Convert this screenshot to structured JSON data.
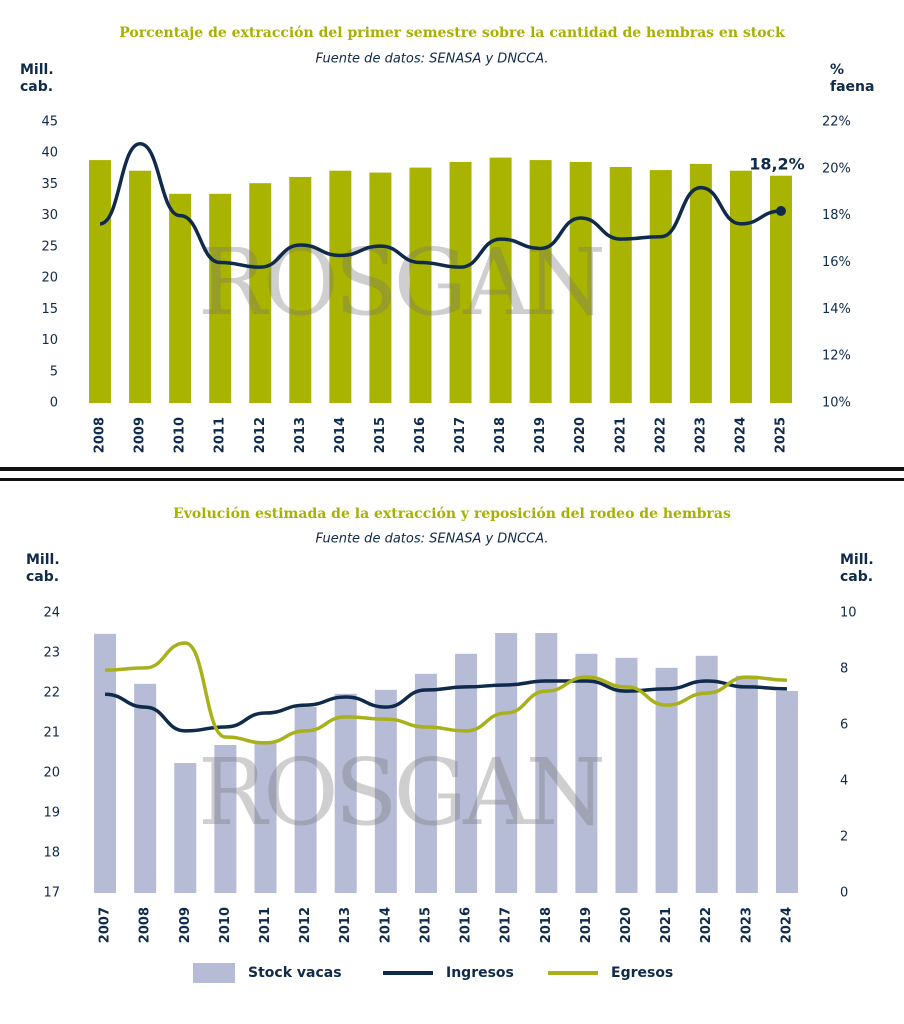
{
  "chart_data": [
    {
      "type": "combo",
      "title": "Porcentaje de extracción del primer semestre sobre la cantidad de hembras en stock",
      "subtitle": "Fuente de datos: SENASA y DNCCA.",
      "y_label": "Mill. cab.",
      "y2_label": "% faena",
      "watermark": "ROSGAN",
      "annotation": "18,2%",
      "categories": [
        "2008",
        "2009",
        "2010",
        "2011",
        "2012",
        "2013",
        "2014",
        "2015",
        "2016",
        "2017",
        "2018",
        "2019",
        "2020",
        "2021",
        "2022",
        "2023",
        "2024",
        "2025"
      ],
      "series": [
        {
          "type": "bar",
          "color": "#a8b400",
          "values": [
            38.9,
            37.2,
            33.5,
            33.5,
            35.2,
            36.2,
            37.2,
            36.9,
            37.7,
            38.6,
            39.3,
            38.9,
            38.6,
            37.8,
            37.3,
            38.3,
            37.2,
            36.4
          ]
        },
        {
          "type": "line",
          "axis": "y2",
          "color": "#0f2a4a",
          "values": [
            17.65,
            21.07,
            18.0,
            16.0,
            15.8,
            16.75,
            16.3,
            16.7,
            16.0,
            15.8,
            17.0,
            16.6,
            17.9,
            17.0,
            17.1,
            19.2,
            17.65,
            18.2
          ]
        }
      ],
      "ylim": [
        0,
        45
      ],
      "yticks": [
        0,
        5,
        10,
        15,
        20,
        25,
        30,
        35,
        40,
        45
      ],
      "y2lim": [
        10,
        22
      ],
      "y2ticks": [
        {
          "value": 10,
          "label": "10%"
        },
        {
          "value": 12,
          "label": "12%"
        },
        {
          "value": 14,
          "label": "14%"
        },
        {
          "value": 16,
          "label": "16%"
        },
        {
          "value": 18,
          "label": "18%"
        },
        {
          "value": 20,
          "label": "20%"
        },
        {
          "value": 22,
          "label": "22%"
        }
      ]
    },
    {
      "type": "combo",
      "title": "Evolución estimada de la extracción y reposición del rodeo de hembras",
      "subtitle": "Fuente de datos: SENASA y DNCCA.",
      "y_label": "Mill. cab.",
      "y2_label": "Mill. cab.",
      "watermark": "ROSGAN",
      "categories": [
        "2007",
        "2008",
        "2009",
        "2010",
        "2011",
        "2012",
        "2013",
        "2014",
        "2015",
        "2016",
        "2017",
        "2018",
        "2019",
        "2020",
        "2021",
        "2022",
        "2023",
        "2024"
      ],
      "series": [
        {
          "type": "bar",
          "name": "Stock vacas",
          "color": "#b6bbd6",
          "values": [
            23.48,
            22.23,
            20.25,
            20.7,
            20.8,
            21.65,
            21.98,
            22.08,
            22.48,
            22.98,
            23.5,
            23.5,
            22.98,
            22.88,
            22.63,
            22.93,
            22.43,
            22.05
          ]
        },
        {
          "type": "line",
          "axis": "y2",
          "name": "Ingresos",
          "color": "#0f2a4a",
          "values": [
            7.1,
            6.64,
            5.79,
            5.93,
            6.43,
            6.71,
            7.0,
            6.64,
            7.25,
            7.36,
            7.43,
            7.57,
            7.57,
            7.21,
            7.29,
            7.57,
            7.36,
            7.29
          ]
        },
        {
          "type": "line",
          "axis": "y2",
          "name": "Egresos",
          "color": "#a8b01a",
          "values": [
            7.96,
            8.04,
            8.93,
            5.57,
            5.36,
            5.79,
            6.29,
            6.21,
            5.93,
            5.79,
            6.43,
            7.21,
            7.71,
            7.36,
            6.71,
            7.14,
            7.71,
            7.6
          ]
        }
      ],
      "ylim": [
        17,
        24
      ],
      "yticks": [
        17,
        18,
        19,
        20,
        21,
        22,
        23,
        24
      ],
      "y2lim": [
        0,
        10
      ],
      "y2ticks": [
        0,
        2,
        4,
        6,
        8,
        10
      ]
    }
  ]
}
